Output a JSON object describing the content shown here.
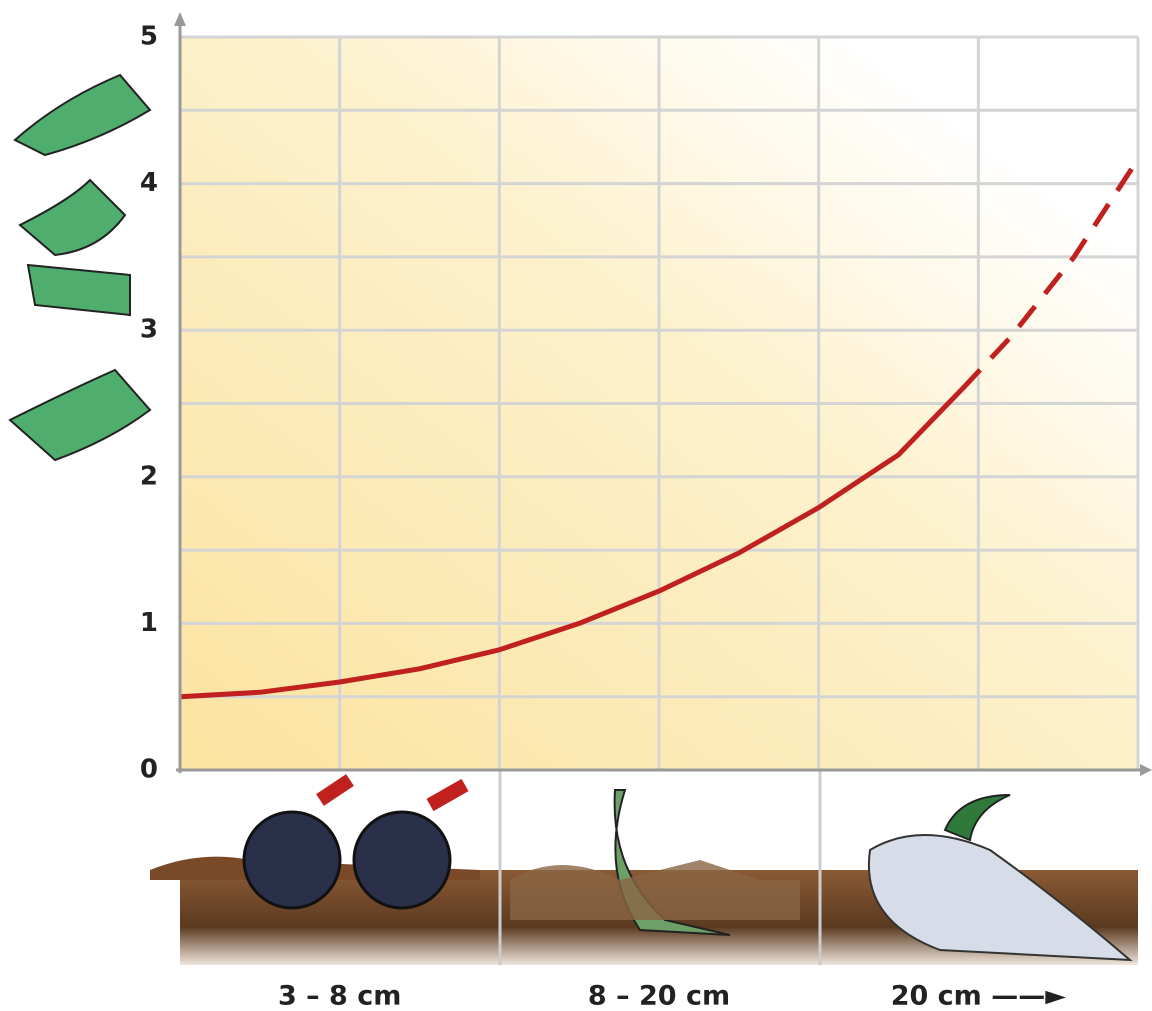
{
  "chart_data": {
    "type": "line",
    "categories": [
      "3 – 8 cm",
      "8 – 20 cm",
      "20 cm ——►"
    ],
    "x": [
      0,
      0.25,
      0.5,
      0.75,
      1,
      1.25,
      1.5,
      1.75,
      2,
      2.25,
      2.45,
      2.6,
      2.8,
      2.98
    ],
    "series": [
      {
        "color": "#c0201e",
        "dashed": false,
        "values": [
          0.5,
          0.53,
          0.6,
          0.69,
          0.82,
          1.0,
          1.22,
          1.48,
          1.79,
          2.15,
          2.6,
          null,
          null,
          null
        ]
      },
      {
        "color": "#c0201e",
        "dashed": true,
        "values": [
          null,
          null,
          null,
          null,
          null,
          null,
          null,
          null,
          null,
          null,
          2.6,
          2.95,
          3.5,
          4.1
        ]
      }
    ],
    "xlim": [
      0,
      3
    ],
    "ylim": [
      0,
      5
    ],
    "yticks": [
      0,
      1,
      2,
      3,
      4,
      5
    ],
    "yminorticks": [
      0.5,
      1.5,
      2.5,
      3.5,
      4.5
    ],
    "xgrid": [
      0,
      0.5,
      1,
      1.5,
      2,
      2.5,
      3
    ],
    "grid": true
  }
}
